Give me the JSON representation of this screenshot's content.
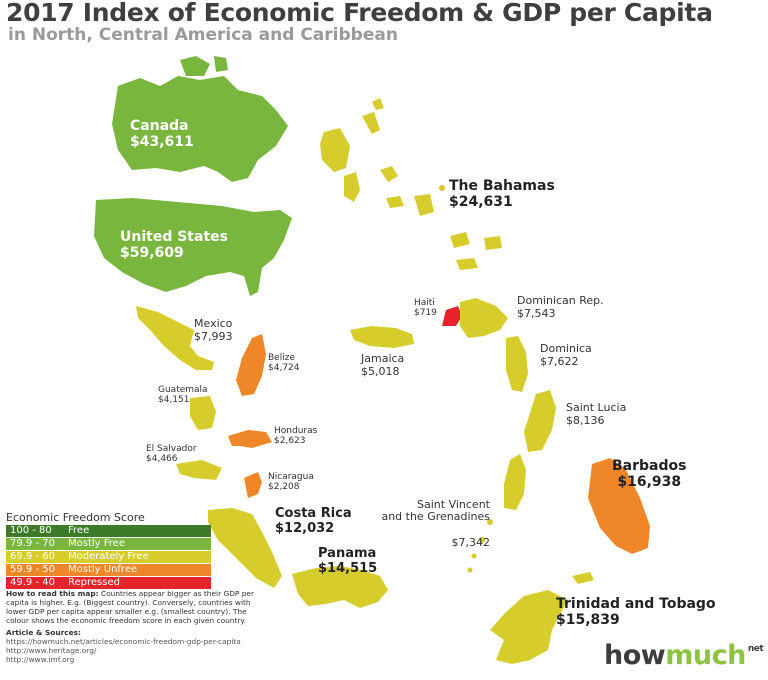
{
  "title": "2017 Index of Economic Freedom & GDP per Capita",
  "subtitle": "in North, Central America and Caribbean",
  "colors": {
    "free": "#3e7b28",
    "mostly_free": "#78b63e",
    "moderately_free": "#d6cc2b",
    "mostly_unfree": "#ef8627",
    "repressed": "#e5232a"
  },
  "countries": {
    "canada": {
      "name": "Canada",
      "gdp": "$43,611",
      "category": "mostly_free"
    },
    "usa": {
      "name": "United States",
      "gdp": "$59,609",
      "category": "mostly_free"
    },
    "mexico": {
      "name": "Mexico",
      "gdp": "$7,993",
      "category": "moderately_free"
    },
    "belize": {
      "name": "Belize",
      "gdp": "$4,724",
      "category": "mostly_unfree"
    },
    "guatemala": {
      "name": "Guatemala",
      "gdp": "$4,151",
      "category": "moderately_free"
    },
    "honduras": {
      "name": "Honduras",
      "gdp": "$2,623",
      "category": "mostly_unfree"
    },
    "el_salvador": {
      "name": "El Salvador",
      "gdp": "$4,466",
      "category": "moderately_free"
    },
    "nicaragua": {
      "name": "Nicaragua",
      "gdp": "$2,208",
      "category": "mostly_unfree"
    },
    "costa_rica": {
      "name": "Costa Rica",
      "gdp": "$12,032",
      "category": "moderately_free"
    },
    "panama": {
      "name": "Panama",
      "gdp": "$14,515",
      "category": "moderately_free"
    },
    "bahamas": {
      "name": "The Bahamas",
      "gdp": "$24,631",
      "category": "moderately_free"
    },
    "haiti": {
      "name": "Haiti",
      "gdp": "$719",
      "category": "repressed"
    },
    "dominican_rep": {
      "name": "Dominican Rep.",
      "gdp": "$7,543",
      "category": "moderately_free"
    },
    "jamaica": {
      "name": "Jamaica",
      "gdp": "$5,018",
      "category": "moderately_free"
    },
    "dominica": {
      "name": "Dominica",
      "gdp": "$7,622",
      "category": "moderately_free"
    },
    "saint_lucia": {
      "name": "Saint Lucia",
      "gdp": "$8,136",
      "category": "moderately_free"
    },
    "saint_vincent": {
      "name": "Saint Vincent\nand the Grenadines",
      "gdp": "$7,342",
      "category": "moderately_free"
    },
    "barbados": {
      "name": "Barbados",
      "gdp": "$16,938",
      "category": "mostly_unfree"
    },
    "trinidad": {
      "name": "Trinidad and Tobago",
      "gdp": "$15,839",
      "category": "moderately_free"
    }
  },
  "legend": {
    "title": "Economic Freedom Score",
    "items": [
      {
        "range": "100 - 80",
        "label": "Free",
        "color": "#3e7b28"
      },
      {
        "range": "79.9 - 70",
        "label": "Mostly Free",
        "color": "#78b63e"
      },
      {
        "range": "69.9 - 60",
        "label": "Moderately Free",
        "color": "#d6cc2b"
      },
      {
        "range": "59.9 - 50",
        "label": "Mostly Unfree",
        "color": "#ef8627"
      },
      {
        "range": "49.9 - 40",
        "label": "Repressed",
        "color": "#e5232a"
      }
    ]
  },
  "notes": {
    "how_to_title": "How to read this map:",
    "how_to_text": "Countries appear bigger as their GDP per capita is higher. E.g. (Biggest country). Conversely, countries with lower GDP per capita appear smaller e.g. (smallest country). The colour shows the economic freedom score in each given country.",
    "sources_title": "Article & Sources:",
    "sources": [
      "https://howmuch.net/articles/economic-freedom-gdp-per-capita",
      "http://www.heritage.org/",
      "http://www.imf.org"
    ]
  },
  "logo": {
    "part1": "how",
    "part2": "much",
    "suffix": "net"
  }
}
